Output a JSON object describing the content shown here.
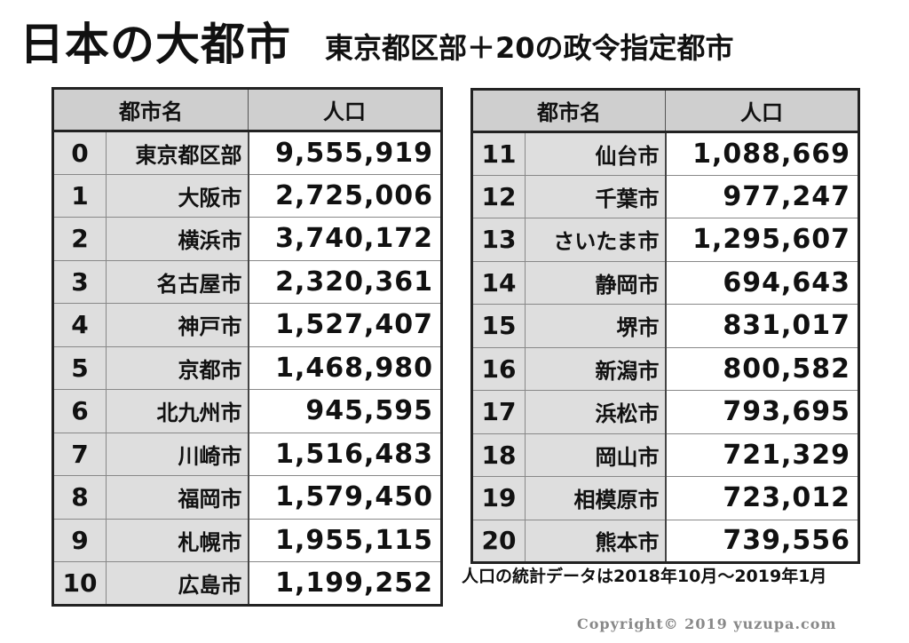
{
  "title": "日本の大都市",
  "subtitle": "東京都区部＋20の政令指定都市",
  "columns": {
    "name": "都市名",
    "population": "人口"
  },
  "left_rows": [
    {
      "idx": "0",
      "name": "東京都区部",
      "population": "9,555,919"
    },
    {
      "idx": "1",
      "name": "大阪市",
      "population": "2,725,006"
    },
    {
      "idx": "2",
      "name": "横浜市",
      "population": "3,740,172"
    },
    {
      "idx": "3",
      "name": "名古屋市",
      "population": "2,320,361"
    },
    {
      "idx": "4",
      "name": "神戸市",
      "population": "1,527,407"
    },
    {
      "idx": "5",
      "name": "京都市",
      "population": "1,468,980"
    },
    {
      "idx": "6",
      "name": "北九州市",
      "population": "945,595"
    },
    {
      "idx": "7",
      "name": "川崎市",
      "population": "1,516,483"
    },
    {
      "idx": "8",
      "name": "福岡市",
      "population": "1,579,450"
    },
    {
      "idx": "9",
      "name": "札幌市",
      "population": "1,955,115"
    },
    {
      "idx": "10",
      "name": "広島市",
      "population": "1,199,252"
    }
  ],
  "right_rows": [
    {
      "idx": "11",
      "name": "仙台市",
      "population": "1,088,669"
    },
    {
      "idx": "12",
      "name": "千葉市",
      "population": "977,247"
    },
    {
      "idx": "13",
      "name": "さいたま市",
      "population": "1,295,607"
    },
    {
      "idx": "14",
      "name": "静岡市",
      "population": "694,643"
    },
    {
      "idx": "15",
      "name": "堺市",
      "population": "831,017"
    },
    {
      "idx": "16",
      "name": "新潟市",
      "population": "800,582"
    },
    {
      "idx": "17",
      "name": "浜松市",
      "population": "793,695"
    },
    {
      "idx": "18",
      "name": "岡山市",
      "population": "721,329"
    },
    {
      "idx": "19",
      "name": "相模原市",
      "population": "723,012"
    },
    {
      "idx": "20",
      "name": "熊本市",
      "population": "739,556"
    }
  ],
  "note": "人口の統計データは2018年10月～2019年1月",
  "copyright": "Copyright© 2019 yuzupa.com"
}
